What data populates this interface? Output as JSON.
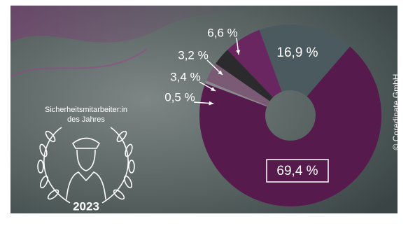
{
  "chart_data": {
    "type": "pie",
    "values": [
      16.9,
      69.4,
      0.5,
      3.4,
      3.2,
      6.6
    ],
    "value_labels": [
      "16,9 %",
      "69,4 %",
      "0,5 %",
      "3,4 %",
      "3,2 %",
      "6,6 %"
    ],
    "colors": [
      "#4b5a5e",
      "#561a4c",
      "#8c8a8e",
      "#7a5a74",
      "#2b2b2d",
      "#6a2660"
    ],
    "badge_title": [
      "Sicherheitsmitarbeiter:in",
      "des Jahres"
    ],
    "badge_year": "2023",
    "credit": "© Coredinate GmbH"
  }
}
